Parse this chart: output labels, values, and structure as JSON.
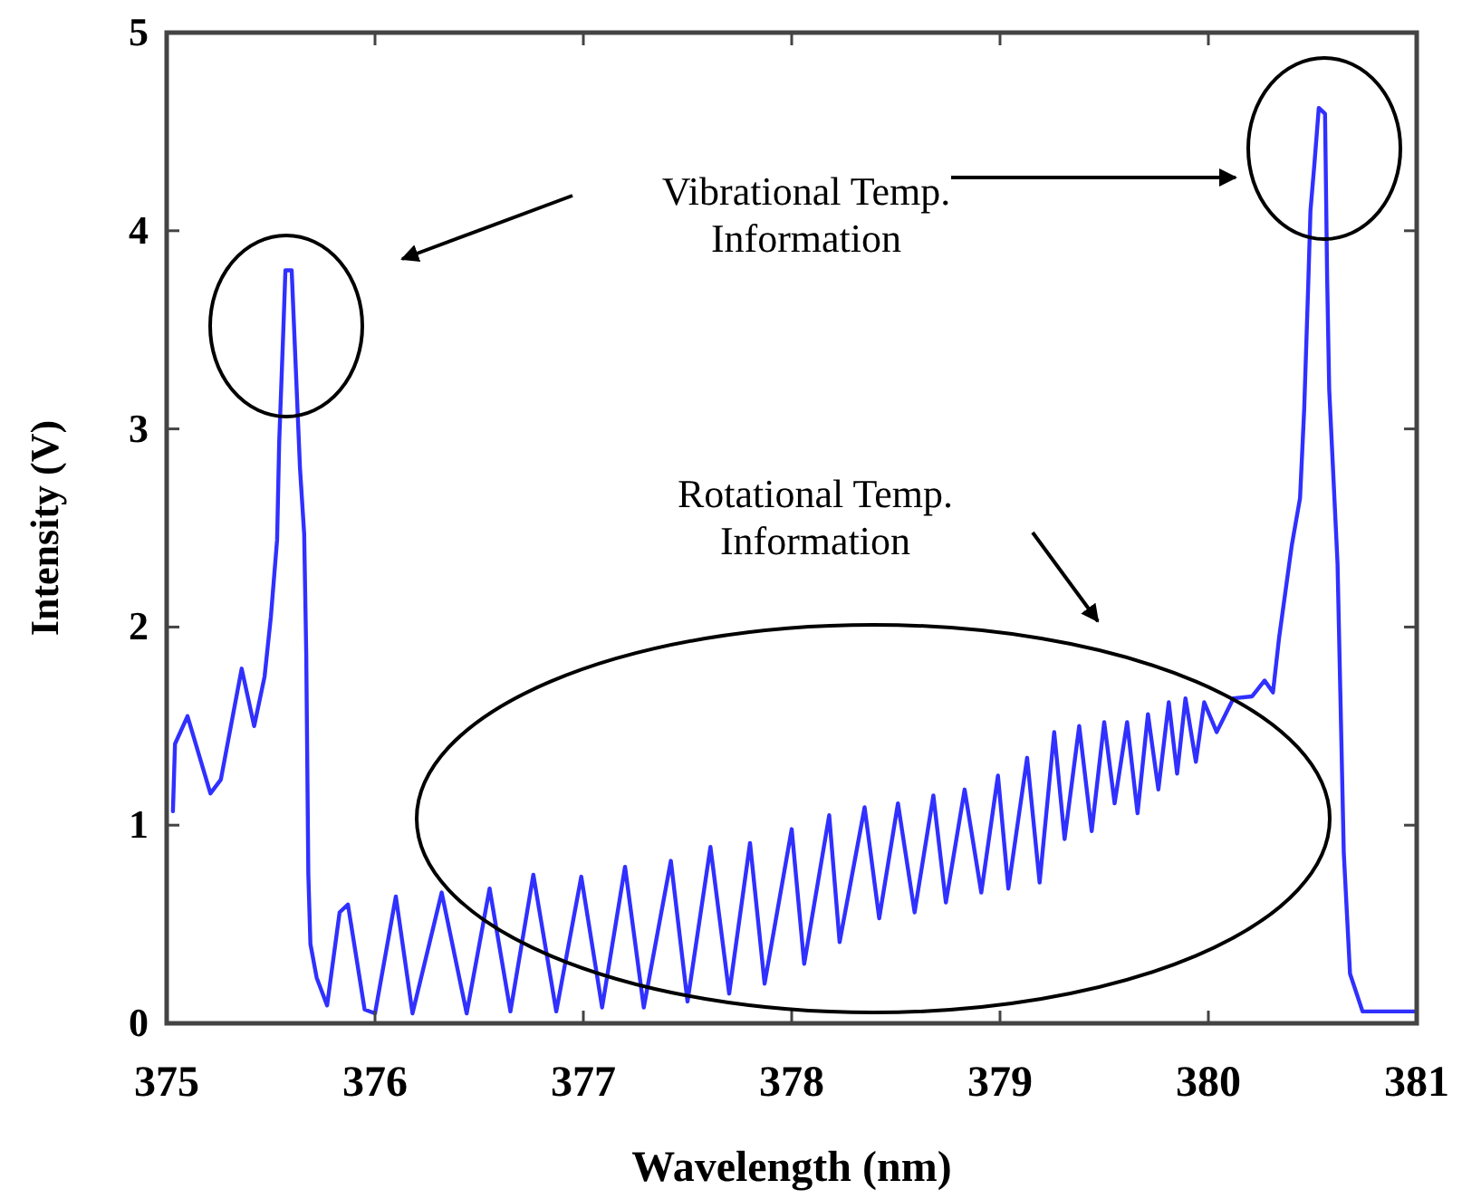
{
  "chart_data": {
    "type": "line",
    "xlabel": "Wavelength (nm)",
    "ylabel": "Intensity (V)",
    "xlim": [
      375,
      381
    ],
    "xticks": [
      375,
      376,
      377,
      378,
      379,
      380,
      381
    ],
    "ylim": [
      0,
      5
    ],
    "yticks": [
      0,
      1,
      2,
      3,
      4,
      5
    ],
    "grid": false,
    "marker": "none",
    "line_style": "solid",
    "annotations": [
      "Vibrational Temp.\nInformation",
      "Rotational Temp.\nInformation"
    ],
    "series": [
      {
        "color": "#3030ff",
        "x": [
          375.03,
          375.04,
          375.1,
          375.21,
          375.26,
          375.36,
          375.42,
          375.47,
          375.5,
          375.53,
          375.54,
          375.56,
          375.57,
          375.6,
          375.64,
          375.66,
          375.67,
          375.68,
          375.69,
          375.72,
          375.77,
          375.83,
          375.87,
          375.95,
          376.0,
          376.1,
          376.18,
          376.32,
          376.44,
          376.55,
          376.65,
          376.76,
          376.87,
          376.99,
          377.09,
          377.2,
          377.29,
          377.42,
          377.5,
          377.61,
          377.7,
          377.8,
          377.87,
          378.0,
          378.06,
          378.18,
          378.23,
          378.35,
          378.42,
          378.51,
          378.59,
          378.68,
          378.74,
          378.83,
          378.91,
          378.99,
          379.04,
          379.13,
          379.19,
          379.26,
          379.31,
          379.38,
          379.44,
          379.5,
          379.55,
          379.61,
          379.66,
          379.71,
          379.76,
          379.81,
          379.85,
          379.89,
          379.94,
          379.98,
          380.04,
          380.12,
          380.21,
          380.27,
          380.31,
          380.34,
          380.4,
          380.44,
          380.46,
          380.48,
          380.49,
          380.51,
          380.53,
          380.56,
          380.57,
          380.58,
          380.62,
          380.65,
          380.68,
          380.74,
          381.0
        ],
        "values": [
          1.07,
          1.41,
          1.55,
          1.16,
          1.23,
          1.79,
          1.5,
          1.75,
          2.05,
          2.44,
          2.93,
          3.5,
          3.8,
          3.8,
          2.8,
          2.47,
          1.86,
          0.75,
          0.4,
          0.23,
          0.09,
          0.56,
          0.6,
          0.07,
          0.05,
          0.64,
          0.05,
          0.66,
          0.05,
          0.68,
          0.06,
          0.75,
          0.06,
          0.74,
          0.08,
          0.79,
          0.08,
          0.82,
          0.11,
          0.89,
          0.15,
          0.91,
          0.2,
          0.98,
          0.3,
          1.05,
          0.41,
          1.09,
          0.53,
          1.11,
          0.56,
          1.15,
          0.61,
          1.18,
          0.66,
          1.25,
          0.68,
          1.34,
          0.71,
          1.47,
          0.93,
          1.5,
          0.97,
          1.52,
          1.11,
          1.52,
          1.06,
          1.56,
          1.18,
          1.62,
          1.26,
          1.64,
          1.32,
          1.62,
          1.47,
          1.64,
          1.65,
          1.73,
          1.67,
          1.95,
          2.41,
          2.65,
          3.1,
          3.75,
          4.1,
          4.35,
          4.62,
          4.59,
          3.77,
          3.2,
          2.32,
          0.86,
          0.25,
          0.06,
          0.06
        ]
      }
    ]
  }
}
